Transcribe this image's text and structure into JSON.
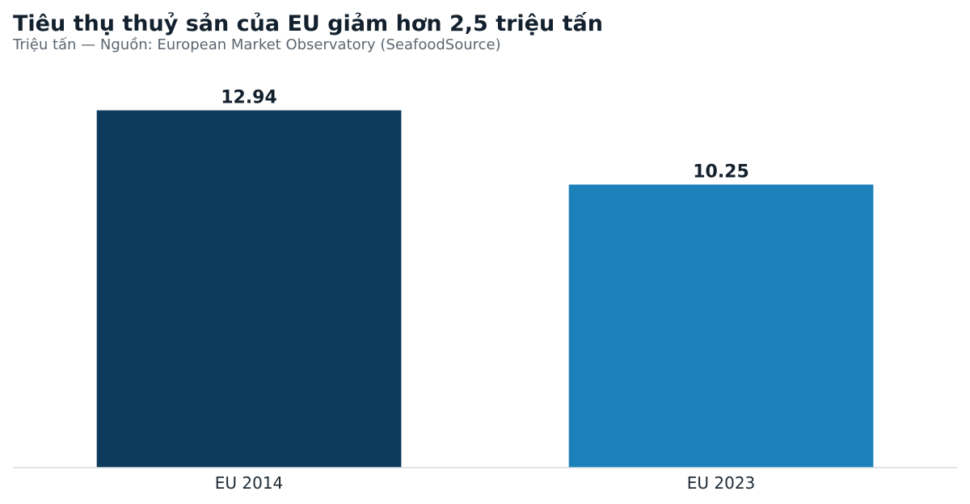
{
  "chart_data": {
    "type": "bar",
    "title": "Tiêu thụ thuỷ sản của EU giảm hơn 2,5 triệu tấn",
    "subtitle": "Triệu tấn — Nguồn: European Market Observatory (SeafoodSource)",
    "categories": [
      "EU 2014",
      "EU 2023"
    ],
    "values": [
      12.94,
      10.25
    ],
    "value_labels": [
      "12.94",
      "10.25"
    ],
    "colors": [
      "#0c3a5c",
      "#1c80b9"
    ],
    "baseline_color": "#d6d9dc",
    "ylim": [
      0,
      13.6
    ],
    "grid": false,
    "legend": "none"
  }
}
